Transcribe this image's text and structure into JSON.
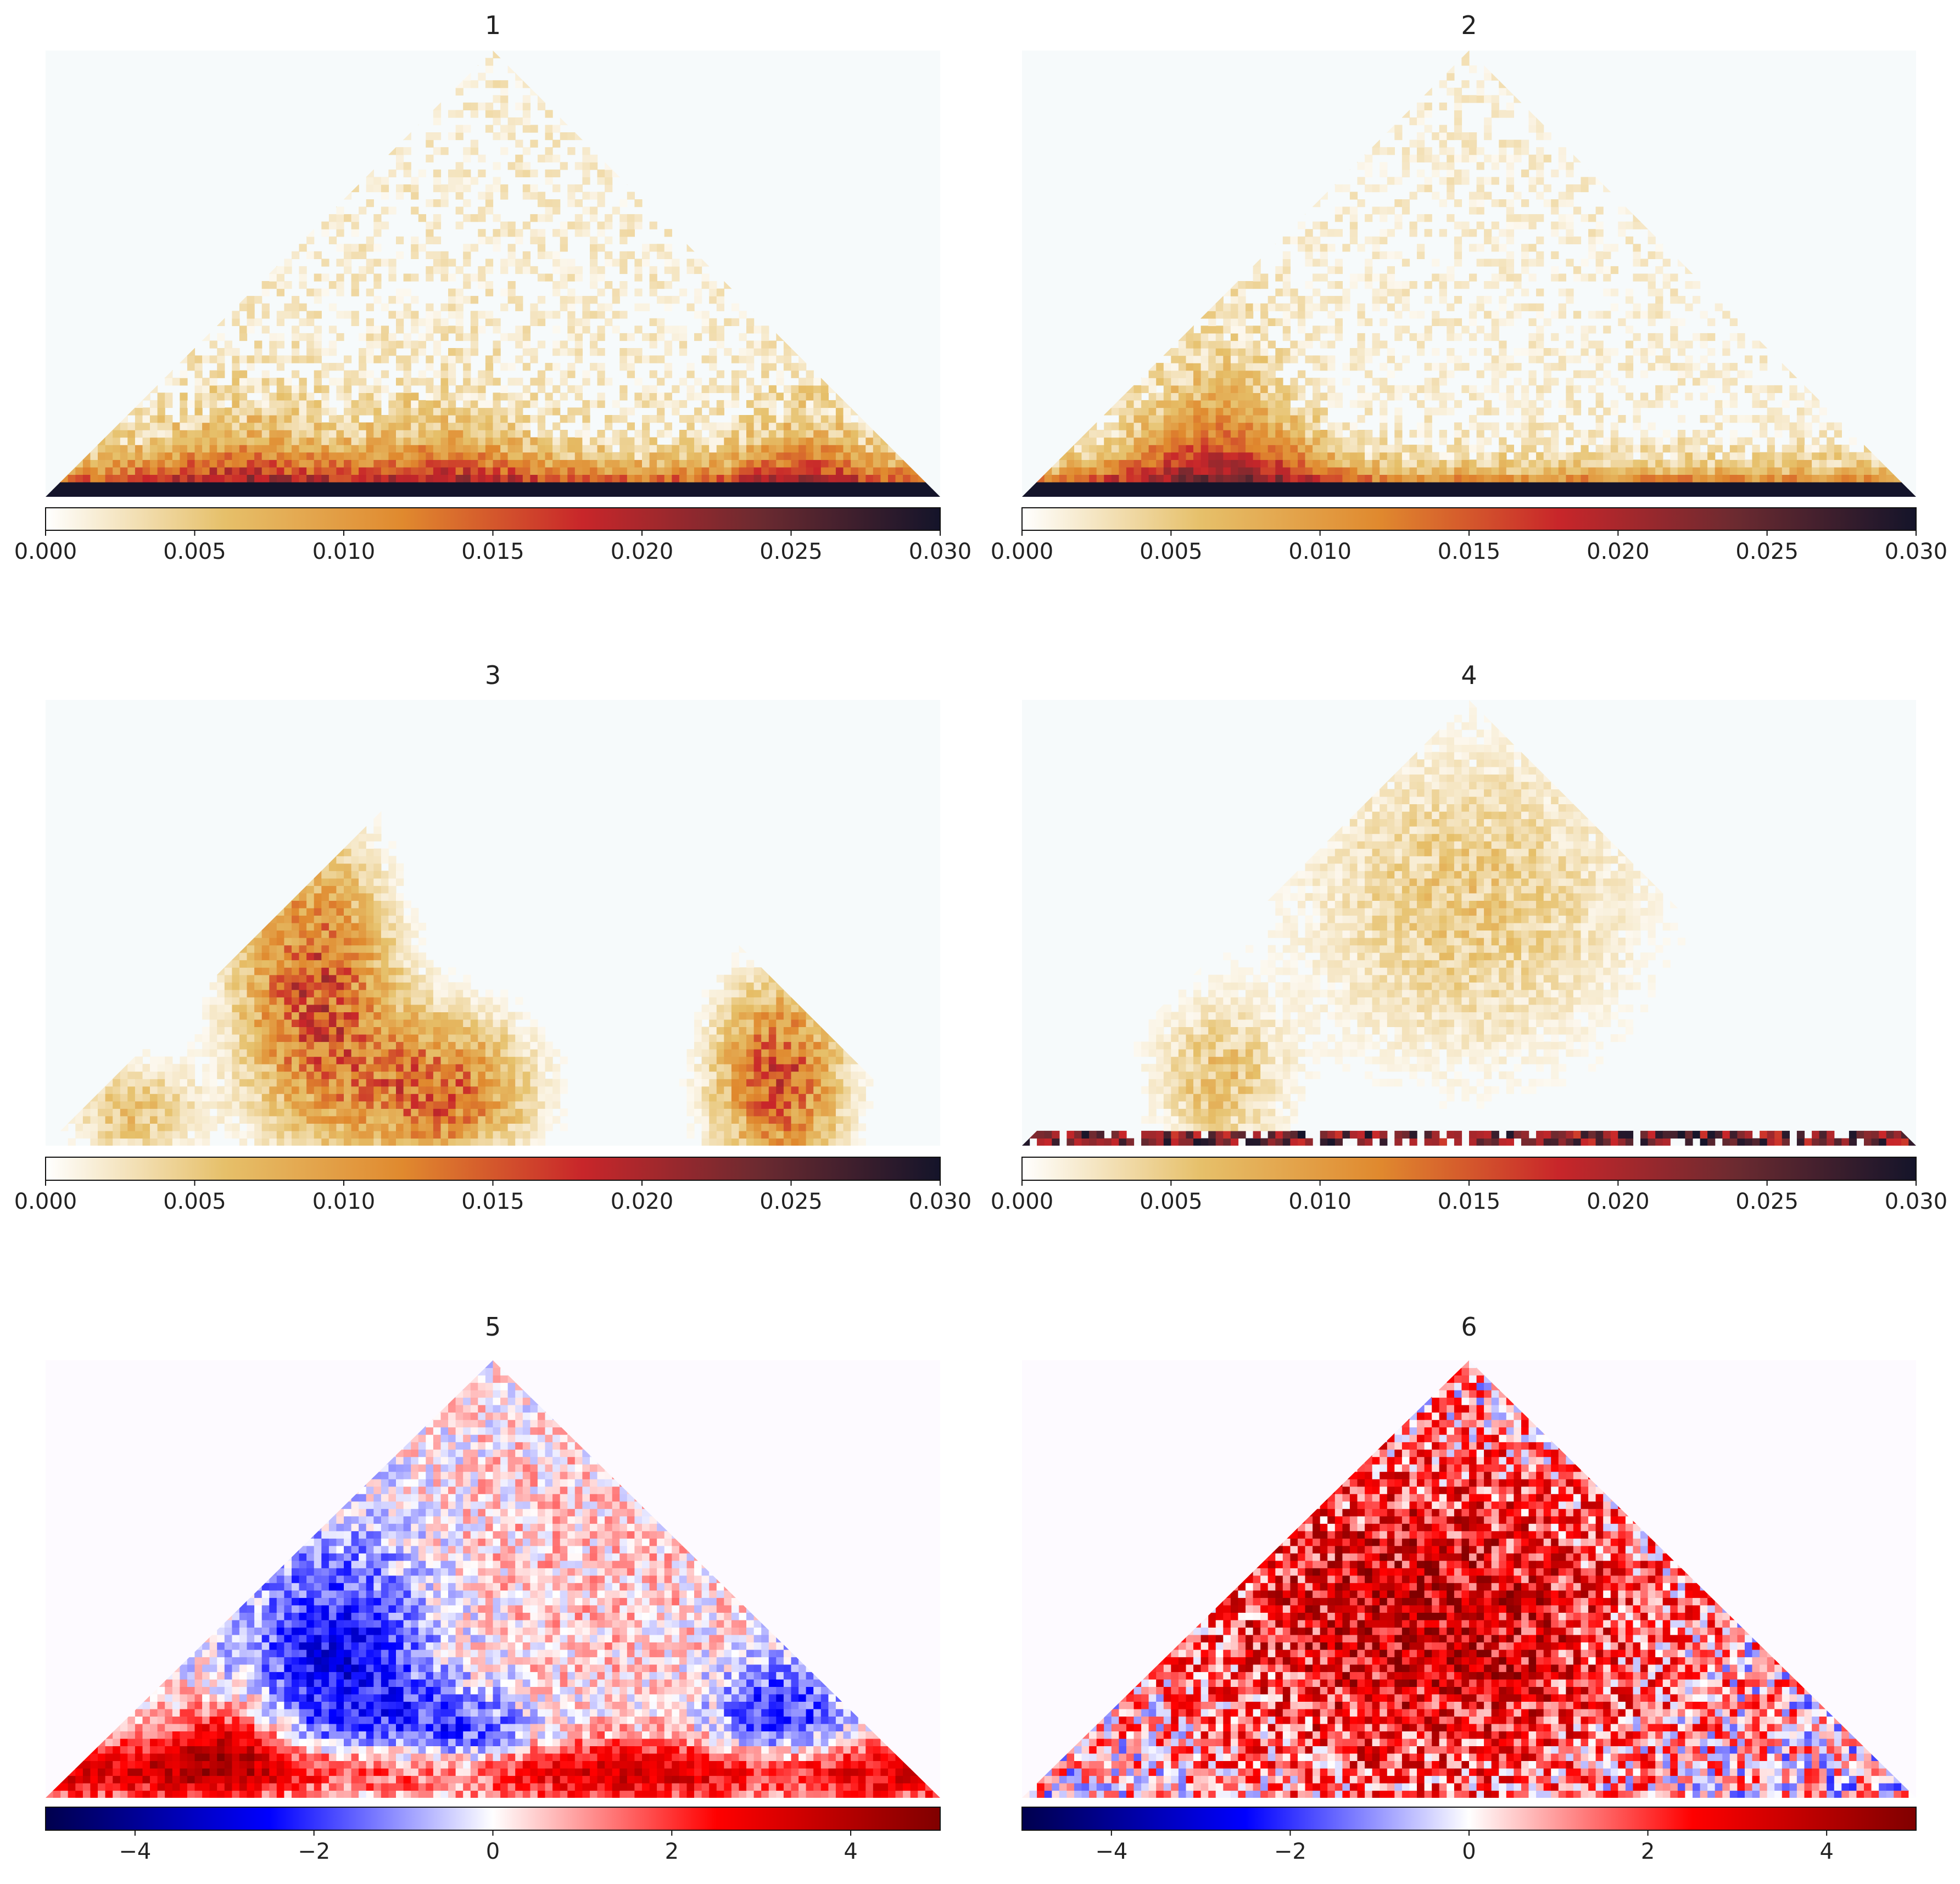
{
  "figure": {
    "panel_count": 6,
    "background": "#ffffff"
  },
  "chart_data": [
    {
      "type": "heatmap",
      "title": "1",
      "shape": "triangle",
      "colormap": [
        "#ffffff",
        "#e6c06a",
        "#e0892e",
        "#c8262a",
        "#6b2a30",
        "#14142a"
      ],
      "colorbar": {
        "min": 0.0,
        "max": 0.03,
        "ticks": [
          0.0,
          0.005,
          0.01,
          0.015,
          0.02,
          0.025,
          0.03
        ],
        "tick_labels": [
          "0.000",
          "0.005",
          "0.010",
          "0.015",
          "0.020",
          "0.025",
          "0.030"
        ]
      },
      "description": "dense near-diagonal band, strongest at base, clusters near 0.2, 0.45 and 0.85 along the diagonal"
    },
    {
      "type": "heatmap",
      "title": "2",
      "shape": "triangle",
      "colormap": [
        "#ffffff",
        "#e6c06a",
        "#e0892e",
        "#c8262a",
        "#6b2a30",
        "#14142a"
      ],
      "colorbar": {
        "min": 0.0,
        "max": 0.03,
        "ticks": [
          0.0,
          0.005,
          0.01,
          0.015,
          0.02,
          0.025,
          0.03
        ],
        "tick_labels": [
          "0.000",
          "0.005",
          "0.010",
          "0.015",
          "0.020",
          "0.025",
          "0.030"
        ]
      }
    },
    {
      "type": "heatmap",
      "title": "3",
      "shape": "triangle",
      "colormap": [
        "#ffffff",
        "#e6c06a",
        "#e0892e",
        "#c8262a",
        "#6b2a30",
        "#14142a"
      ],
      "colorbar": {
        "min": 0.0,
        "max": 0.03,
        "ticks": [
          0.0,
          0.005,
          0.01,
          0.015,
          0.02,
          0.025,
          0.03
        ],
        "tick_labels": [
          "0.000",
          "0.005",
          "0.010",
          "0.015",
          "0.020",
          "0.025",
          "0.030"
        ]
      }
    },
    {
      "type": "heatmap",
      "title": "4",
      "shape": "triangle",
      "colormap": [
        "#ffffff",
        "#e6c06a",
        "#e0892e",
        "#c8262a",
        "#6b2a30",
        "#14142a"
      ],
      "colorbar": {
        "min": 0.0,
        "max": 0.03,
        "ticks": [
          0.0,
          0.005,
          0.01,
          0.015,
          0.02,
          0.025,
          0.03
        ],
        "tick_labels": [
          "0.000",
          "0.005",
          "0.010",
          "0.015",
          "0.020",
          "0.025",
          "0.030"
        ]
      }
    },
    {
      "type": "heatmap",
      "title": "5",
      "shape": "triangle",
      "colormap": [
        "#00004d",
        "#0000ff",
        "#ffffff",
        "#ff0000",
        "#800000"
      ],
      "colorbar": {
        "min": -5,
        "max": 5,
        "ticks": [
          -4,
          -2,
          0,
          2,
          4
        ],
        "tick_labels": [
          "−4",
          "−2",
          "0",
          "2",
          "4"
        ]
      }
    },
    {
      "type": "heatmap",
      "title": "6",
      "shape": "triangle",
      "colormap": [
        "#00004d",
        "#0000ff",
        "#ffffff",
        "#ff0000",
        "#800000"
      ],
      "colorbar": {
        "min": -5,
        "max": 5,
        "ticks": [
          -4,
          -2,
          0,
          2,
          4
        ],
        "tick_labels": [
          "−4",
          "−2",
          "0",
          "2",
          "4"
        ]
      }
    }
  ]
}
